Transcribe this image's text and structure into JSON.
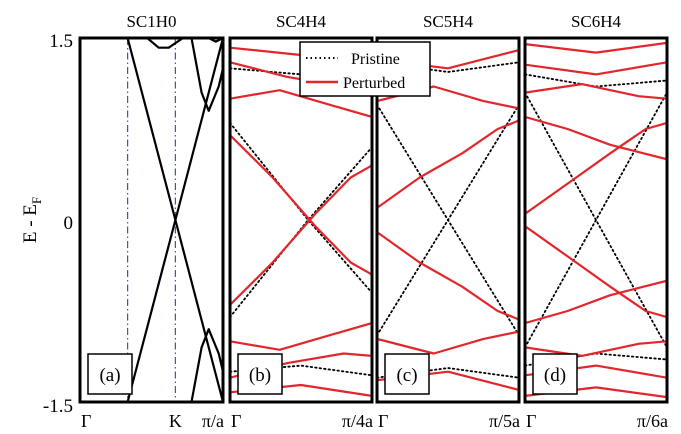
{
  "figure": {
    "ylabel": "E - E",
    "ylabel_sub": "F",
    "yticks": [
      "1.5",
      "0",
      "-1.5"
    ],
    "ytick_values": [
      1.5,
      0,
      -1.5
    ],
    "ylim": [
      -1.5,
      1.5
    ]
  },
  "legend": {
    "pristine": "Pristine",
    "perturbed": "Perturbed"
  },
  "colors": {
    "pristine": "#000000",
    "perturbed": "#e3262b",
    "sc1h0_bands": "#000000",
    "kpoint_line": "#3a5a9a"
  },
  "chart_data": [
    {
      "type": "line",
      "title": "SC1H0",
      "panel_label": "(a)",
      "xticks": [
        "Γ",
        "K",
        "π/a"
      ],
      "xtick_values": [
        0,
        0.667,
        1.0
      ],
      "xlim": [
        0,
        1.0
      ],
      "ylim": [
        -1.5,
        1.5
      ],
      "vlines": [
        0.333,
        0.667
      ],
      "series": [
        {
          "style": "solid",
          "x": [
            0.333,
            0.667,
            1.0
          ],
          "y": [
            1.5,
            0.0,
            -1.5
          ]
        },
        {
          "style": "solid",
          "x": [
            0.333,
            0.667,
            1.0
          ],
          "y": [
            -1.5,
            0.0,
            1.5
          ]
        },
        {
          "style": "solid",
          "x": [
            0.78,
            0.85,
            0.9,
            0.97,
            1.0
          ],
          "y": [
            1.5,
            1.05,
            0.9,
            1.1,
            1.25
          ]
        },
        {
          "style": "solid",
          "x": [
            0.78,
            0.85,
            0.9,
            0.97,
            1.0
          ],
          "y": [
            -1.5,
            -1.05,
            -0.9,
            -1.1,
            -1.25
          ]
        },
        {
          "style": "solid",
          "x": [
            0.47,
            0.55,
            0.62,
            0.72
          ],
          "y": [
            1.5,
            1.42,
            1.42,
            1.5
          ]
        },
        {
          "style": "solid",
          "x": [
            0.9,
            0.95,
            1.0
          ],
          "y": [
            1.5,
            1.47,
            1.5
          ]
        }
      ]
    },
    {
      "type": "line",
      "title": "SC4H4",
      "panel_label": "(b)",
      "xticks": [
        "Γ",
        "π/4a"
      ],
      "xtick_values": [
        0,
        1.0
      ],
      "xlim": [
        0,
        1.0
      ],
      "ylim": [
        -1.5,
        1.5
      ],
      "series": [
        {
          "name": "Pristine",
          "style": "dotted",
          "x": [
            0.0,
            0.55,
            1.0
          ],
          "y": [
            -0.8,
            0.0,
            0.6
          ]
        },
        {
          "name": "Pristine",
          "style": "dotted",
          "x": [
            0.0,
            0.55,
            1.0
          ],
          "y": [
            0.8,
            0.0,
            -0.6
          ]
        },
        {
          "name": "Pristine",
          "style": "dotted",
          "x": [
            0.0,
            0.5,
            1.0
          ],
          "y": [
            1.25,
            1.2,
            1.28
          ]
        },
        {
          "name": "Pristine",
          "style": "dotted",
          "x": [
            0.0,
            0.5,
            1.0
          ],
          "y": [
            -1.25,
            -1.2,
            -1.28
          ]
        },
        {
          "name": "Perturbed",
          "style": "solid",
          "x": [
            0.0,
            0.3,
            0.6,
            0.85,
            1.0
          ],
          "y": [
            -0.7,
            -0.35,
            0.05,
            0.35,
            0.45
          ]
        },
        {
          "name": "Perturbed",
          "style": "solid",
          "x": [
            0.0,
            0.3,
            0.6,
            0.85,
            1.0
          ],
          "y": [
            0.7,
            0.35,
            -0.05,
            -0.35,
            -0.45
          ]
        },
        {
          "name": "Perturbed",
          "style": "solid",
          "x": [
            0.0,
            0.35,
            0.7,
            1.0
          ],
          "y": [
            1.0,
            1.07,
            0.95,
            0.85
          ]
        },
        {
          "name": "Perturbed",
          "style": "solid",
          "x": [
            0.0,
            0.35,
            0.7,
            1.0
          ],
          "y": [
            -1.0,
            -1.07,
            -0.95,
            -0.85
          ]
        },
        {
          "name": "Perturbed",
          "style": "solid",
          "x": [
            0.0,
            0.4,
            0.8,
            1.0
          ],
          "y": [
            1.3,
            1.18,
            1.1,
            1.12
          ]
        },
        {
          "name": "Perturbed",
          "style": "solid",
          "x": [
            0.0,
            0.4,
            0.8,
            1.0
          ],
          "y": [
            -1.3,
            -1.18,
            -1.1,
            -1.12
          ]
        },
        {
          "name": "Perturbed",
          "style": "solid",
          "x": [
            0.0,
            0.5,
            1.0
          ],
          "y": [
            1.42,
            1.36,
            1.45
          ]
        },
        {
          "name": "Perturbed",
          "style": "solid",
          "x": [
            0.0,
            0.5,
            1.0
          ],
          "y": [
            -1.42,
            -1.36,
            -1.45
          ]
        }
      ]
    },
    {
      "type": "line",
      "title": "SC5H4",
      "panel_label": "(c)",
      "xticks": [
        "Γ",
        "π/5a"
      ],
      "xtick_values": [
        0,
        1.0
      ],
      "xlim": [
        0,
        1.0
      ],
      "ylim": [
        -1.5,
        1.5
      ],
      "series": [
        {
          "name": "Pristine",
          "style": "dotted",
          "x": [
            0.0,
            0.5,
            1.0
          ],
          "y": [
            0.95,
            0.0,
            -0.95
          ]
        },
        {
          "name": "Pristine",
          "style": "dotted",
          "x": [
            0.0,
            0.5,
            1.0
          ],
          "y": [
            -0.95,
            0.0,
            0.95
          ]
        },
        {
          "name": "Pristine",
          "style": "dotted",
          "x": [
            0.0,
            0.5,
            1.0
          ],
          "y": [
            1.3,
            1.22,
            1.3
          ]
        },
        {
          "name": "Pristine",
          "style": "dotted",
          "x": [
            0.0,
            0.5,
            1.0
          ],
          "y": [
            -1.3,
            -1.22,
            -1.3
          ]
        },
        {
          "name": "Perturbed",
          "style": "solid",
          "x": [
            0.0,
            0.3,
            0.6,
            0.85,
            1.0
          ],
          "y": [
            0.1,
            0.35,
            0.55,
            0.75,
            0.82
          ]
        },
        {
          "name": "Perturbed",
          "style": "solid",
          "x": [
            0.0,
            0.3,
            0.6,
            0.85,
            1.0
          ],
          "y": [
            -0.1,
            -0.35,
            -0.55,
            -0.75,
            -0.82
          ]
        },
        {
          "name": "Perturbed",
          "style": "solid",
          "x": [
            0.0,
            0.4,
            0.75,
            1.0
          ],
          "y": [
            0.98,
            1.1,
            0.98,
            0.92
          ]
        },
        {
          "name": "Perturbed",
          "style": "solid",
          "x": [
            0.0,
            0.4,
            0.75,
            1.0
          ],
          "y": [
            -0.98,
            -1.1,
            -0.98,
            -0.92
          ]
        },
        {
          "name": "Perturbed",
          "style": "solid",
          "x": [
            0.0,
            0.5,
            1.0
          ],
          "y": [
            1.32,
            1.25,
            1.4
          ]
        },
        {
          "name": "Perturbed",
          "style": "solid",
          "x": [
            0.0,
            0.5,
            1.0
          ],
          "y": [
            -1.32,
            -1.25,
            -1.4
          ]
        }
      ]
    },
    {
      "type": "line",
      "title": "SC6H4",
      "panel_label": "(d)",
      "xticks": [
        "Γ",
        "π/6a"
      ],
      "xtick_values": [
        0,
        1.0
      ],
      "xlim": [
        0,
        1.0
      ],
      "ylim": [
        -1.5,
        1.5
      ],
      "series": [
        {
          "name": "Pristine",
          "style": "dotted",
          "x": [
            0.0,
            0.5,
            1.0
          ],
          "y": [
            1.05,
            0.0,
            -1.05
          ]
        },
        {
          "name": "Pristine",
          "style": "dotted",
          "x": [
            0.0,
            0.5,
            1.0
          ],
          "y": [
            -1.05,
            0.0,
            1.05
          ]
        },
        {
          "name": "Pristine",
          "style": "dotted",
          "x": [
            0.0,
            0.5,
            1.0
          ],
          "y": [
            1.2,
            1.1,
            1.15
          ]
        },
        {
          "name": "Pristine",
          "style": "dotted",
          "x": [
            0.0,
            0.5,
            1.0
          ],
          "y": [
            -1.2,
            -1.1,
            -1.15
          ]
        },
        {
          "name": "Perturbed",
          "style": "solid",
          "x": [
            0.0,
            0.3,
            0.6,
            0.85,
            1.0
          ],
          "y": [
            0.05,
            0.3,
            0.55,
            0.75,
            0.8
          ]
        },
        {
          "name": "Perturbed",
          "style": "solid",
          "x": [
            0.0,
            0.3,
            0.6,
            0.85,
            1.0
          ],
          "y": [
            -0.05,
            -0.3,
            -0.55,
            -0.75,
            -0.8
          ]
        },
        {
          "name": "Perturbed",
          "style": "solid",
          "x": [
            0.0,
            0.3,
            0.6,
            1.0
          ],
          "y": [
            0.85,
            0.75,
            0.62,
            0.5
          ]
        },
        {
          "name": "Perturbed",
          "style": "solid",
          "x": [
            0.0,
            0.3,
            0.6,
            1.0
          ],
          "y": [
            -0.85,
            -0.75,
            -0.62,
            -0.5
          ]
        },
        {
          "name": "Perturbed",
          "style": "solid",
          "x": [
            0.0,
            0.4,
            0.8,
            1.0
          ],
          "y": [
            1.05,
            1.12,
            1.02,
            1.0
          ]
        },
        {
          "name": "Perturbed",
          "style": "solid",
          "x": [
            0.0,
            0.4,
            0.8,
            1.0
          ],
          "y": [
            -1.05,
            -1.12,
            -1.02,
            -1.0
          ]
        },
        {
          "name": "Perturbed",
          "style": "solid",
          "x": [
            0.0,
            0.5,
            1.0
          ],
          "y": [
            1.28,
            1.2,
            1.3
          ]
        },
        {
          "name": "Perturbed",
          "style": "solid",
          "x": [
            0.0,
            0.5,
            1.0
          ],
          "y": [
            -1.28,
            -1.2,
            -1.3
          ]
        },
        {
          "name": "Perturbed",
          "style": "solid",
          "x": [
            0.0,
            0.5,
            1.0
          ],
          "y": [
            1.45,
            1.38,
            1.46
          ]
        },
        {
          "name": "Perturbed",
          "style": "solid",
          "x": [
            0.0,
            0.5,
            1.0
          ],
          "y": [
            -1.45,
            -1.38,
            -1.46
          ]
        }
      ]
    }
  ]
}
